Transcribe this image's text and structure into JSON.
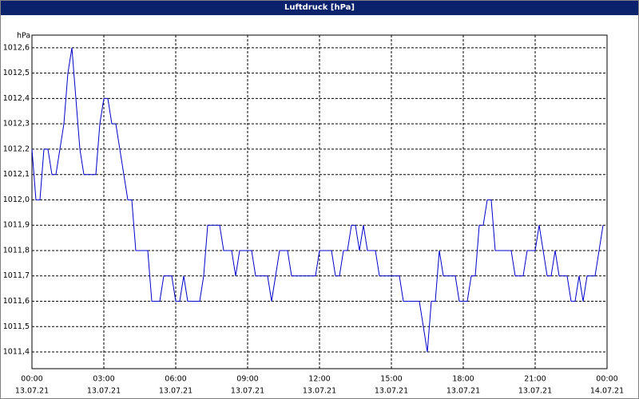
{
  "chart_data": {
    "type": "line",
    "title": "Luftdruck [hPa]",
    "y_label": "hPa",
    "color": "#0000cc",
    "grid": true,
    "xlim": [
      0,
      1440
    ],
    "xticks": [
      {
        "value": 0,
        "label": "00:00",
        "date": "13.07.21"
      },
      {
        "value": 180,
        "label": "03:00",
        "date": "13.07.21"
      },
      {
        "value": 360,
        "label": "06:00",
        "date": "13.07.21"
      },
      {
        "value": 540,
        "label": "09:00",
        "date": "13.07.21"
      },
      {
        "value": 720,
        "label": "12:00",
        "date": "13.07.21"
      },
      {
        "value": 900,
        "label": "15:00",
        "date": "13.07.21"
      },
      {
        "value": 1080,
        "label": "18:00",
        "date": "13.07.21"
      },
      {
        "value": 1260,
        "label": "21:00",
        "date": "13.07.21"
      },
      {
        "value": 1440,
        "label": "00:00",
        "date": "14.07.21"
      }
    ],
    "ylim": [
      1011.334,
      1012.65
    ],
    "yticks": [
      {
        "value": 1011.4,
        "label": "1011,4"
      },
      {
        "value": 1011.5,
        "label": "1011,5"
      },
      {
        "value": 1011.6,
        "label": "1011,6"
      },
      {
        "value": 1011.7,
        "label": "1011,7"
      },
      {
        "value": 1011.8,
        "label": "1011,8"
      },
      {
        "value": 1011.9,
        "label": "1011,9"
      },
      {
        "value": 1012.0,
        "label": "1012,0"
      },
      {
        "value": 1012.1,
        "label": "1012,1"
      },
      {
        "value": 1012.2,
        "label": "1012,2"
      },
      {
        "value": 1012.3,
        "label": "1012,3"
      },
      {
        "value": 1012.4,
        "label": "1012,4"
      },
      {
        "value": 1012.5,
        "label": "1012,5"
      },
      {
        "value": 1012.6,
        "label": "1012,6"
      }
    ],
    "x": [
      0,
      10,
      20,
      30,
      40,
      50,
      60,
      70,
      80,
      90,
      100,
      110,
      120,
      130,
      140,
      150,
      160,
      170,
      180,
      190,
      200,
      210,
      220,
      230,
      240,
      250,
      260,
      270,
      280,
      290,
      300,
      310,
      320,
      330,
      340,
      350,
      360,
      370,
      380,
      390,
      400,
      410,
      420,
      430,
      440,
      450,
      460,
      470,
      480,
      490,
      500,
      510,
      520,
      530,
      540,
      550,
      560,
      570,
      580,
      590,
      600,
      610,
      620,
      630,
      640,
      650,
      660,
      670,
      680,
      690,
      700,
      710,
      720,
      730,
      740,
      750,
      760,
      770,
      780,
      790,
      800,
      810,
      820,
      830,
      840,
      850,
      860,
      870,
      880,
      890,
      900,
      910,
      920,
      930,
      940,
      950,
      960,
      970,
      980,
      990,
      1000,
      1010,
      1020,
      1030,
      1040,
      1050,
      1060,
      1070,
      1080,
      1090,
      1100,
      1110,
      1120,
      1130,
      1140,
      1150,
      1160,
      1170,
      1180,
      1190,
      1200,
      1210,
      1220,
      1230,
      1240,
      1250,
      1260,
      1270,
      1280,
      1290,
      1300,
      1310,
      1320,
      1330,
      1340,
      1350,
      1360,
      1370,
      1380,
      1390,
      1400,
      1410,
      1420,
      1430
    ],
    "values": [
      1012.2,
      1012.0,
      1012.0,
      1012.2,
      1012.2,
      1012.1,
      1012.1,
      1012.2,
      1012.3,
      1012.5,
      1012.6,
      1012.4,
      1012.2,
      1012.1,
      1012.1,
      1012.1,
      1012.1,
      1012.3,
      1012.4,
      1012.4,
      1012.3,
      1012.3,
      1012.2,
      1012.1,
      1012.0,
      1012.0,
      1011.8,
      1011.8,
      1011.8,
      1011.8,
      1011.6,
      1011.6,
      1011.6,
      1011.7,
      1011.7,
      1011.7,
      1011.6,
      1011.6,
      1011.7,
      1011.6,
      1011.6,
      1011.6,
      1011.6,
      1011.7,
      1011.9,
      1011.9,
      1011.9,
      1011.9,
      1011.8,
      1011.8,
      1011.8,
      1011.7,
      1011.8,
      1011.8,
      1011.8,
      1011.8,
      1011.7,
      1011.7,
      1011.7,
      1011.7,
      1011.6,
      1011.7,
      1011.8,
      1011.8,
      1011.8,
      1011.7,
      1011.7,
      1011.7,
      1011.7,
      1011.7,
      1011.7,
      1011.7,
      1011.8,
      1011.8,
      1011.8,
      1011.8,
      1011.7,
      1011.7,
      1011.8,
      1011.8,
      1011.9,
      1011.9,
      1011.8,
      1011.9,
      1011.8,
      1011.8,
      1011.8,
      1011.7,
      1011.7,
      1011.7,
      1011.7,
      1011.7,
      1011.7,
      1011.6,
      1011.6,
      1011.6,
      1011.6,
      1011.6,
      1011.5,
      1011.4,
      1011.6,
      1011.6,
      1011.8,
      1011.7,
      1011.7,
      1011.7,
      1011.7,
      1011.6,
      1011.6,
      1011.6,
      1011.7,
      1011.7,
      1011.9,
      1011.9,
      1012.0,
      1012.0,
      1011.8,
      1011.8,
      1011.8,
      1011.8,
      1011.8,
      1011.7,
      1011.7,
      1011.7,
      1011.8,
      1011.8,
      1011.8,
      1011.9,
      1011.8,
      1011.7,
      1011.7,
      1011.8,
      1011.7,
      1011.7,
      1011.7,
      1011.6,
      1011.6,
      1011.7,
      1011.6,
      1011.7,
      1011.7,
      1011.7,
      1011.8,
      1011.9
    ]
  }
}
